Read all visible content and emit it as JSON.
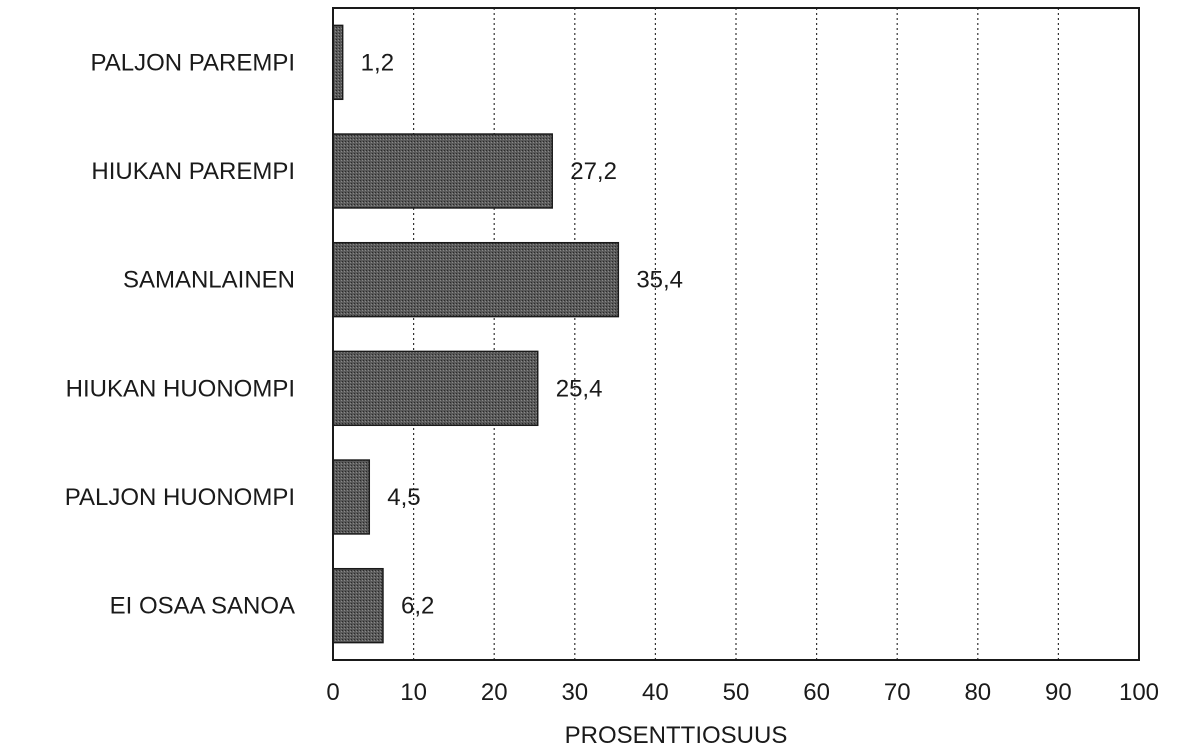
{
  "chart_data": {
    "type": "bar",
    "orientation": "horizontal",
    "categories": [
      "PALJON PAREMPI",
      "HIUKAN PAREMPI",
      "SAMANLAINEN",
      "HIUKAN HUONOMPI",
      "PALJON HUONOMPI",
      "EI OSAA SANOA"
    ],
    "values": [
      1.2,
      27.2,
      35.4,
      25.4,
      4.5,
      6.2
    ],
    "value_labels": [
      "1,2",
      "27,2",
      "35,4",
      "25,4",
      "4,5",
      "6,2"
    ],
    "xlabel": "PROSENTTIOSUUS",
    "ylabel": "",
    "xlim": [
      0,
      100
    ],
    "xticks": [
      0,
      10,
      20,
      30,
      40,
      50,
      60,
      70,
      80,
      90,
      100
    ],
    "xtick_labels": [
      "0",
      "10",
      "20",
      "30",
      "40",
      "50",
      "60",
      "70",
      "80",
      "90",
      "100"
    ],
    "grid": "vertical dotted",
    "bar_color": "#4a4a4a"
  }
}
